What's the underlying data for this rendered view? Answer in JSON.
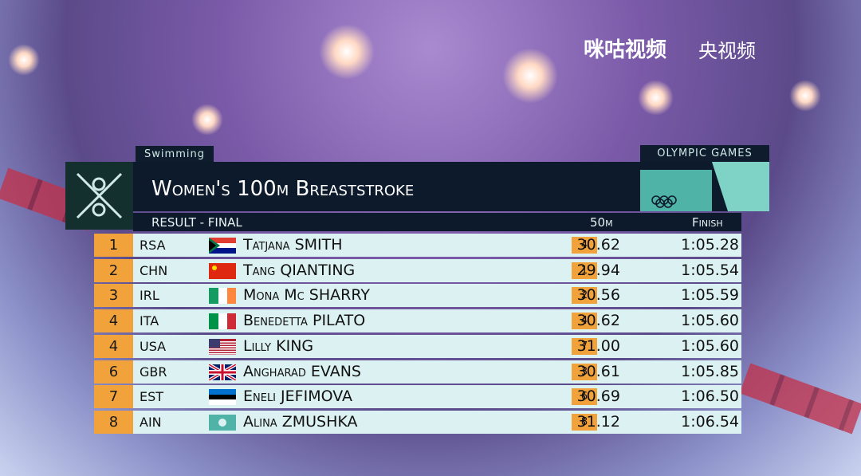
{
  "broadcaster": {
    "left_logo": "咪咕视频",
    "right_logo": "央视频"
  },
  "header": {
    "sport": "Swimming",
    "games": "OLYMPIC GAMES",
    "title": "Women's 100m Breaststroke",
    "subtitle": "RESULT - FINAL"
  },
  "table": {
    "columns": [
      "50m",
      "Finish"
    ],
    "rows": [
      [
        "1",
        "RSA",
        "Tatjana SMITH",
        "4",
        "30.62",
        "1:05.28"
      ],
      [
        "2",
        "CHN",
        "Tang QIANTING",
        "1",
        "29.94",
        "1:05.54"
      ],
      [
        "3",
        "IRL",
        "Mona Mc SHARRY",
        "2",
        "30.56",
        "1:05.59"
      ],
      [
        "4",
        "ITA",
        "Benedetta PILATO",
        "4",
        "30.62",
        "1:05.60"
      ],
      [
        "4",
        "USA",
        "Lilly KING",
        "7",
        "31.00",
        "1:05.60"
      ],
      [
        "6",
        "GBR",
        "Angharad EVANS",
        "3",
        "30.61",
        "1:05.85"
      ],
      [
        "7",
        "EST",
        "Eneli JEFIMOVA",
        "6",
        "30.69",
        "1:06.50"
      ],
      [
        "8",
        "AIN",
        "Alina ZMUSHKA",
        "8",
        "31.12",
        "1:06.54"
      ]
    ]
  }
}
